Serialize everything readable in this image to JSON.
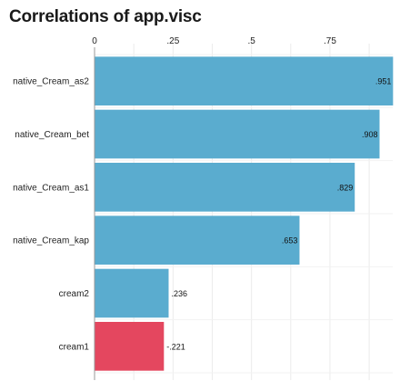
{
  "chart_data": {
    "type": "bar",
    "orientation": "horizontal",
    "title": "Correlations of app.visc",
    "xlabel": "",
    "ylabel": "",
    "xlim": [
      0,
      0.95
    ],
    "xticks": [
      0,
      0.25,
      0.5,
      0.75
    ],
    "xtick_labels": [
      "0",
      ".25",
      ".5",
      ".75"
    ],
    "categories": [
      "native_Cream_as2",
      "native_Cream_bet",
      "native_Cream_as1",
      "native_Cream_kap",
      "cream2",
      "cream1"
    ],
    "values": [
      0.951,
      0.908,
      0.829,
      0.653,
      0.236,
      -0.221
    ],
    "value_labels": [
      ".951",
      ".908",
      ".829",
      ".653",
      ".236",
      "-.221"
    ],
    "plotted_as": "absolute value",
    "grid": true,
    "legend": "none",
    "colors": {
      "positive": "#5aaccf",
      "negative": "#e4475f",
      "grid": "#ebebeb"
    }
  }
}
